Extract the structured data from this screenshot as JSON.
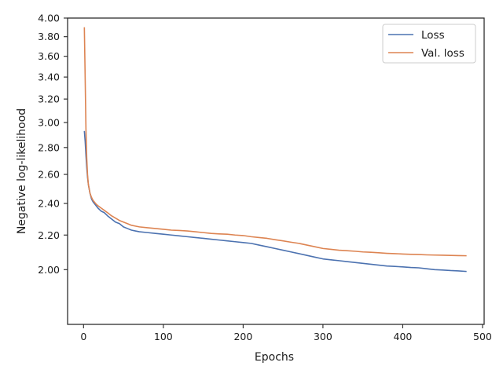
{
  "chart_data": {
    "type": "line",
    "xlabel": "Epochs",
    "ylabel": "Negative log-likelihood",
    "xlim": [
      -20,
      502
    ],
    "ylim": [
      1.72,
      4.0
    ],
    "y_scale": "log",
    "x_ticks": [
      0,
      100,
      200,
      300,
      400,
      500
    ],
    "x_tick_labels": [
      "0",
      "100",
      "200",
      "300",
      "400",
      "500"
    ],
    "y_ticks": [
      2.0,
      2.2,
      2.4,
      2.6,
      2.8,
      3.0,
      3.2,
      3.4,
      3.6,
      3.8,
      4.0
    ],
    "y_tick_labels": [
      "2.00",
      "2.20",
      "2.40",
      "2.60",
      "2.80",
      "3.00",
      "3.20",
      "3.40",
      "3.60",
      "3.80",
      "4.00"
    ],
    "grid": false,
    "legend_position": "top-right",
    "series": [
      {
        "name": "Loss",
        "color": "#4c72b0",
        "x": [
          1,
          2,
          3,
          4,
          5,
          6,
          8,
          10,
          12,
          15,
          18,
          22,
          26,
          30,
          35,
          40,
          45,
          50,
          55,
          60,
          65,
          70,
          80,
          90,
          100,
          110,
          120,
          130,
          140,
          150,
          160,
          170,
          180,
          190,
          200,
          210,
          220,
          230,
          240,
          250,
          260,
          270,
          280,
          290,
          300,
          310,
          320,
          330,
          340,
          350,
          360,
          370,
          380,
          390,
          400,
          410,
          420,
          430,
          440,
          450,
          460,
          470,
          480
        ],
        "y": [
          2.93,
          2.85,
          2.74,
          2.65,
          2.58,
          2.53,
          2.47,
          2.43,
          2.41,
          2.39,
          2.37,
          2.35,
          2.34,
          2.32,
          2.3,
          2.28,
          2.27,
          2.25,
          2.24,
          2.23,
          2.225,
          2.22,
          2.215,
          2.21,
          2.205,
          2.2,
          2.195,
          2.19,
          2.185,
          2.18,
          2.175,
          2.17,
          2.165,
          2.16,
          2.155,
          2.15,
          2.14,
          2.13,
          2.12,
          2.11,
          2.1,
          2.09,
          2.08,
          2.07,
          2.06,
          2.055,
          2.05,
          2.045,
          2.04,
          2.035,
          2.03,
          2.025,
          2.02,
          2.018,
          2.015,
          2.012,
          2.01,
          2.005,
          2.0,
          1.998,
          1.995,
          1.993,
          1.99
        ]
      },
      {
        "name": "Val. loss",
        "color": "#dd8452",
        "x": [
          1,
          2,
          3,
          4,
          5,
          6,
          8,
          10,
          12,
          15,
          18,
          22,
          26,
          30,
          35,
          40,
          45,
          50,
          55,
          60,
          65,
          70,
          80,
          90,
          100,
          110,
          120,
          130,
          140,
          150,
          160,
          170,
          180,
          190,
          200,
          210,
          220,
          230,
          240,
          250,
          260,
          270,
          280,
          290,
          300,
          310,
          320,
          330,
          340,
          350,
          360,
          370,
          380,
          390,
          400,
          410,
          420,
          430,
          440,
          450,
          460,
          470,
          480
        ],
        "y": [
          3.9,
          3.4,
          2.95,
          2.72,
          2.6,
          2.53,
          2.47,
          2.44,
          2.42,
          2.4,
          2.385,
          2.37,
          2.355,
          2.34,
          2.32,
          2.305,
          2.29,
          2.28,
          2.27,
          2.26,
          2.255,
          2.25,
          2.245,
          2.24,
          2.235,
          2.23,
          2.228,
          2.225,
          2.22,
          2.215,
          2.21,
          2.207,
          2.205,
          2.2,
          2.197,
          2.19,
          2.185,
          2.18,
          2.172,
          2.165,
          2.157,
          2.15,
          2.14,
          2.13,
          2.12,
          2.115,
          2.11,
          2.107,
          2.104,
          2.1,
          2.098,
          2.095,
          2.092,
          2.09,
          2.088,
          2.086,
          2.085,
          2.083,
          2.082,
          2.081,
          2.08,
          2.079,
          2.078
        ]
      }
    ]
  }
}
